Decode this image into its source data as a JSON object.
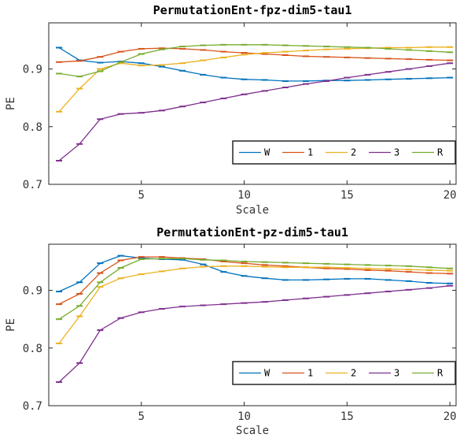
{
  "chart_data": [
    {
      "type": "line",
      "title": "PermutationEnt-fpz-dim5-tau1",
      "xlabel": "Scale",
      "ylabel": "PE",
      "xlim": [
        0.5,
        20.3
      ],
      "ylim": [
        0.7,
        0.98
      ],
      "xticks": [
        5,
        10,
        15,
        20
      ],
      "yticks": [
        0.7,
        0.8,
        0.9
      ],
      "ytick_labels": [
        "0.7",
        "0.8",
        "0.9"
      ],
      "legend": {
        "placement": "bottom-right",
        "orientation": "horizontal"
      },
      "x": [
        1,
        2,
        3,
        4,
        5,
        6,
        7,
        8,
        9,
        10,
        11,
        12,
        13,
        14,
        15,
        16,
        17,
        18,
        19,
        20
      ],
      "series": [
        {
          "name": "W",
          "color": "#0072BD",
          "values": [
            0.937,
            0.915,
            0.911,
            0.913,
            0.91,
            0.904,
            0.897,
            0.89,
            0.885,
            0.882,
            0.881,
            0.879,
            0.879,
            0.88,
            0.88,
            0.881,
            0.882,
            0.883,
            0.884,
            0.885
          ]
        },
        {
          "name": "1",
          "color": "#D95319",
          "values": [
            0.912,
            0.914,
            0.921,
            0.93,
            0.935,
            0.936,
            0.935,
            0.933,
            0.93,
            0.928,
            0.926,
            0.924,
            0.922,
            0.921,
            0.92,
            0.919,
            0.918,
            0.917,
            0.916,
            0.915
          ]
        },
        {
          "name": "2",
          "color": "#EDB120",
          "values": [
            0.826,
            0.866,
            0.9,
            0.91,
            0.906,
            0.907,
            0.91,
            0.915,
            0.92,
            0.925,
            0.928,
            0.93,
            0.932,
            0.934,
            0.935,
            0.936,
            0.937,
            0.937,
            0.938,
            0.938
          ]
        },
        {
          "name": "3",
          "color": "#7E2F8E",
          "values": [
            0.741,
            0.77,
            0.813,
            0.822,
            0.824,
            0.828,
            0.835,
            0.842,
            0.849,
            0.856,
            0.862,
            0.868,
            0.874,
            0.879,
            0.885,
            0.89,
            0.895,
            0.9,
            0.905,
            0.91
          ]
        },
        {
          "name": "R",
          "color": "#77AC30",
          "values": [
            0.892,
            0.887,
            0.896,
            0.912,
            0.926,
            0.934,
            0.939,
            0.941,
            0.942,
            0.942,
            0.942,
            0.941,
            0.94,
            0.939,
            0.938,
            0.937,
            0.935,
            0.933,
            0.931,
            0.929
          ]
        }
      ]
    },
    {
      "type": "line",
      "title": "PermutationEnt-pz-dim5-tau1",
      "xlabel": "Scale",
      "ylabel": "PE",
      "xlim": [
        0.5,
        20.3
      ],
      "ylim": [
        0.7,
        0.98
      ],
      "xticks": [
        5,
        10,
        15,
        20
      ],
      "yticks": [
        0.7,
        0.8,
        0.9
      ],
      "ytick_labels": [
        "0.7",
        "0.8",
        "0.9"
      ],
      "legend": {
        "placement": "bottom-right",
        "orientation": "horizontal"
      },
      "x": [
        1,
        2,
        3,
        4,
        5,
        6,
        7,
        8,
        9,
        10,
        11,
        12,
        13,
        14,
        15,
        16,
        17,
        18,
        19,
        20
      ],
      "series": [
        {
          "name": "W",
          "color": "#0072BD",
          "values": [
            0.898,
            0.914,
            0.947,
            0.96,
            0.956,
            0.954,
            0.953,
            0.945,
            0.932,
            0.925,
            0.921,
            0.918,
            0.918,
            0.919,
            0.92,
            0.92,
            0.918,
            0.916,
            0.913,
            0.912
          ]
        },
        {
          "name": "1",
          "color": "#D95319",
          "values": [
            0.876,
            0.894,
            0.93,
            0.952,
            0.958,
            0.958,
            0.956,
            0.954,
            0.95,
            0.947,
            0.944,
            0.942,
            0.94,
            0.938,
            0.937,
            0.935,
            0.934,
            0.932,
            0.93,
            0.929
          ]
        },
        {
          "name": "2",
          "color": "#EDB120",
          "values": [
            0.808,
            0.855,
            0.906,
            0.921,
            0.928,
            0.933,
            0.938,
            0.941,
            0.942,
            0.942,
            0.941,
            0.94,
            0.94,
            0.94,
            0.939,
            0.938,
            0.937,
            0.936,
            0.935,
            0.934
          ]
        },
        {
          "name": "3",
          "color": "#7E2F8E",
          "values": [
            0.741,
            0.774,
            0.831,
            0.852,
            0.862,
            0.868,
            0.872,
            0.874,
            0.876,
            0.878,
            0.88,
            0.883,
            0.886,
            0.889,
            0.892,
            0.895,
            0.898,
            0.901,
            0.904,
            0.908
          ]
        },
        {
          "name": "R",
          "color": "#77AC30",
          "values": [
            0.85,
            0.873,
            0.914,
            0.939,
            0.954,
            0.955,
            0.955,
            0.953,
            0.952,
            0.95,
            0.949,
            0.948,
            0.947,
            0.946,
            0.945,
            0.944,
            0.943,
            0.942,
            0.94,
            0.938
          ]
        }
      ]
    }
  ]
}
